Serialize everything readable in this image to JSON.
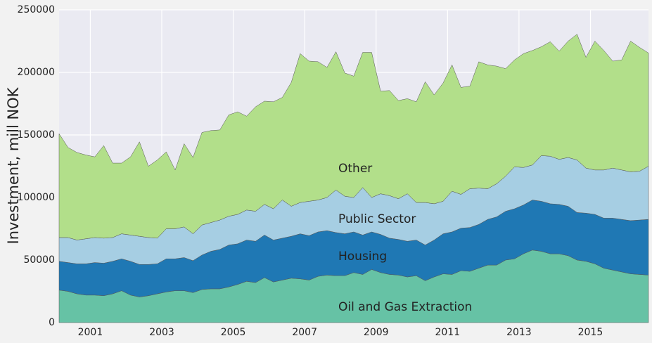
{
  "chart_data": {
    "type": "stacked_area",
    "y_label": "Investment, mill NOK",
    "x": [
      2000.125,
      2000.375,
      2000.625,
      2000.875,
      2001.125,
      2001.375,
      2001.625,
      2001.875,
      2002.125,
      2002.375,
      2002.625,
      2002.875,
      2003.125,
      2003.375,
      2003.625,
      2003.875,
      2004.125,
      2004.375,
      2004.625,
      2004.875,
      2005.125,
      2005.375,
      2005.625,
      2005.875,
      2006.125,
      2006.375,
      2006.625,
      2006.875,
      2007.125,
      2007.375,
      2007.625,
      2007.875,
      2008.125,
      2008.375,
      2008.625,
      2008.875,
      2009.125,
      2009.375,
      2009.625,
      2009.875,
      2010.125,
      2010.375,
      2010.625,
      2010.875,
      2011.125,
      2011.375,
      2011.625,
      2011.875,
      2012.125,
      2012.375,
      2012.625,
      2012.875,
      2013.125,
      2013.375,
      2013.625,
      2013.875,
      2014.125,
      2014.375,
      2014.625,
      2014.875,
      2015.125,
      2015.375,
      2015.625,
      2015.875,
      2016.125,
      2016.375,
      2016.625
    ],
    "series": [
      {
        "name": "Oil and Gas Extraction",
        "color": "#66c2a5",
        "values": [
          26000,
          25000,
          23000,
          22000,
          22000,
          21500,
          23000,
          25500,
          22000,
          20500,
          21500,
          23000,
          24500,
          25500,
          25500,
          24000,
          26500,
          27000,
          27000,
          28500,
          30500,
          33000,
          32000,
          36000,
          32500,
          34000,
          35500,
          35000,
          34000,
          37000,
          38000,
          37500,
          37500,
          40000,
          38500,
          42500,
          40000,
          38500,
          38000,
          36500,
          37500,
          33500,
          36500,
          39000,
          38500,
          41500,
          41000,
          43500,
          46000,
          46000,
          50000,
          51000,
          55000,
          58000,
          57000,
          55000,
          55000,
          53500,
          50000,
          49000,
          47000,
          43500,
          42000,
          40500,
          39000,
          38500,
          38000
        ]
      },
      {
        "name": "Housing",
        "color": "#1f78b4",
        "values": [
          23000,
          23000,
          24000,
          25000,
          26000,
          26000,
          26000,
          25500,
          27000,
          26000,
          25000,
          24000,
          26500,
          25500,
          26500,
          25500,
          27500,
          30000,
          31500,
          33500,
          32500,
          33000,
          33000,
          34000,
          33500,
          33500,
          33500,
          36000,
          35500,
          35500,
          35500,
          34500,
          33500,
          32500,
          31500,
          30000,
          30500,
          29000,
          28500,
          28500,
          28500,
          28500,
          29500,
          32000,
          34000,
          34000,
          35000,
          35000,
          36500,
          38500,
          39000,
          40000,
          39000,
          40000,
          40000,
          40000,
          39500,
          39500,
          38000,
          38500,
          39500,
          40000,
          41500,
          42000,
          42500,
          43500,
          44500
        ]
      },
      {
        "name": "Public Sector",
        "color": "#a6cee3",
        "values": [
          19000,
          20000,
          19000,
          20000,
          20000,
          20000,
          19000,
          20000,
          21000,
          22500,
          21500,
          20500,
          24000,
          24000,
          24500,
          21500,
          24000,
          23000,
          23500,
          23000,
          23500,
          24000,
          24000,
          24500,
          25000,
          30500,
          24000,
          25000,
          27500,
          25500,
          26500,
          34000,
          30000,
          27500,
          38000,
          27500,
          32500,
          34000,
          32500,
          38000,
          30000,
          34000,
          29000,
          26000,
          32500,
          27000,
          31000,
          29000,
          24500,
          26500,
          28000,
          33500,
          30000,
          28000,
          36500,
          38000,
          36000,
          39000,
          42000,
          36000,
          35500,
          38500,
          40000,
          39500,
          39000,
          39000,
          42500
        ]
      },
      {
        "name": "Other",
        "color": "#b2df8a",
        "values": [
          83000,
          72000,
          70000,
          67000,
          64500,
          74000,
          59500,
          56500,
          62500,
          75500,
          57000,
          62500,
          61500,
          47000,
          66500,
          61000,
          74000,
          73500,
          72000,
          81000,
          82000,
          75000,
          83500,
          82500,
          85500,
          82000,
          99000,
          119000,
          112000,
          110500,
          104000,
          110500,
          98500,
          97000,
          108000,
          116000,
          82000,
          84000,
          78500,
          76000,
          80500,
          96500,
          87000,
          94500,
          101000,
          85500,
          82000,
          101000,
          99000,
          94000,
          86000,
          85500,
          91000,
          91500,
          87000,
          91500,
          86500,
          93000,
          100500,
          88500,
          103000,
          95500,
          85500,
          88000,
          104500,
          99000,
          90500
        ]
      }
    ],
    "xlim": [
      2000.125,
      2016.625
    ],
    "xticks": [
      2001,
      2003,
      2005,
      2007,
      2009,
      2011,
      2013,
      2015
    ],
    "ylim": [
      0,
      250000
    ],
    "yticks": [
      0,
      50000,
      100000,
      150000,
      200000,
      250000
    ],
    "grid": true
  }
}
